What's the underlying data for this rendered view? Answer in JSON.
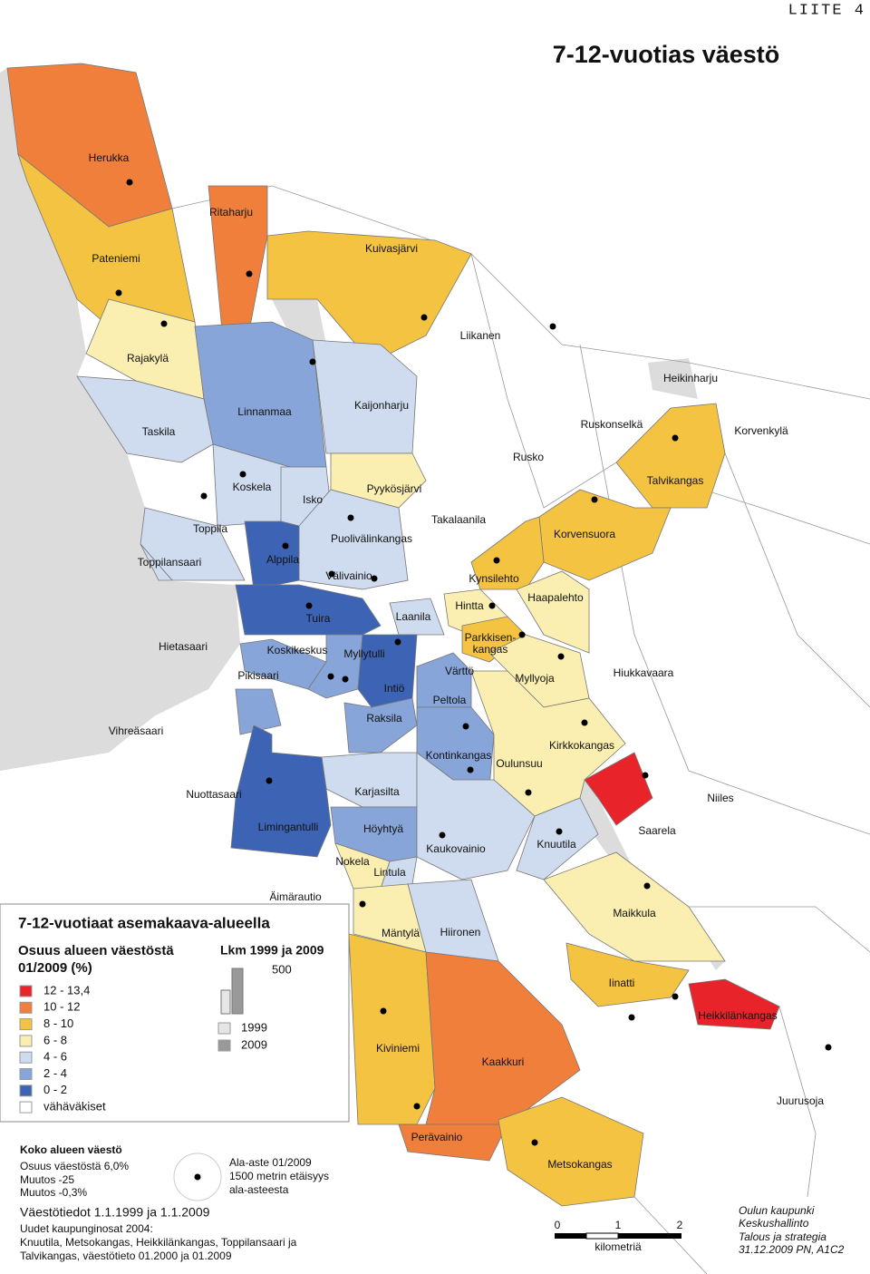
{
  "header": {
    "appendix": "LIITE 4",
    "title": "7-12-vuotias väestö"
  },
  "districts": [
    {
      "name": "Herukka",
      "color": "#f07f3c"
    },
    {
      "name": "Ritaharju",
      "color": "#f07f3c"
    },
    {
      "name": "Pateniemi",
      "color": "#f5c342"
    },
    {
      "name": "Kuivasjärvi",
      "color": "#f5c342"
    },
    {
      "name": "Liikanen",
      "color": "#ffffff"
    },
    {
      "name": "Rajakylä",
      "color": "#faefb0"
    },
    {
      "name": "Heikinharju",
      "color": "#ffffff"
    },
    {
      "name": "Linnanmaa",
      "color": "#87a5d8"
    },
    {
      "name": "Kaijonharju",
      "color": "#cfdcef"
    },
    {
      "name": "Taskila",
      "color": "#cfdcef"
    },
    {
      "name": "Ruskonselkä",
      "color": "#ffffff"
    },
    {
      "name": "Korvenkylä",
      "color": "#ffffff"
    },
    {
      "name": "Rusko",
      "color": "#ffffff"
    },
    {
      "name": "Talvikangas",
      "color": "#f5c342"
    },
    {
      "name": "Koskela",
      "color": "#cfdcef"
    },
    {
      "name": "Pyykösjärvi",
      "color": "#faefb0"
    },
    {
      "name": "Isko",
      "color": "#cfdcef"
    },
    {
      "name": "Takalaanila",
      "color": "#ffffff"
    },
    {
      "name": "Toppila",
      "color": "#cfdcef"
    },
    {
      "name": "Korvensuora",
      "color": "#f5c342"
    },
    {
      "name": "Puolivälinkangas",
      "color": "#cfdcef"
    },
    {
      "name": "Alppila",
      "color": "#3d64b4"
    },
    {
      "name": "Toppilansaari",
      "color": "#cfdcef"
    },
    {
      "name": "Välivainio",
      "color": "#cfdcef"
    },
    {
      "name": "Kynsilehto",
      "color": "#f5c342"
    },
    {
      "name": "Haapalehto",
      "color": "#faefb0"
    },
    {
      "name": "Hintta",
      "color": "#faefb0"
    },
    {
      "name": "Tuira",
      "color": "#3d64b4"
    },
    {
      "name": "Laanila",
      "color": "#cfdcef"
    },
    {
      "name": "Hietasaari",
      "color": "#ffffff"
    },
    {
      "name": [
        "Parkkisen-",
        "kangas"
      ],
      "color": "#f5c342"
    },
    {
      "name": "Koskikeskus",
      "color": "#87a5d8"
    },
    {
      "name": "Myllytulli",
      "color": "#87a5d8"
    },
    {
      "name": "Pikisaari",
      "color": "#87a5d8"
    },
    {
      "name": "Värttö",
      "color": "#87a5d8"
    },
    {
      "name": "Myllyoja",
      "color": "#faefb0"
    },
    {
      "name": "Hiukkavaara",
      "color": "#ffffff"
    },
    {
      "name": "Intiö",
      "color": "#3d64b4"
    },
    {
      "name": "Peltola",
      "color": "#87a5d8"
    },
    {
      "name": "Raksila",
      "color": "#87a5d8"
    },
    {
      "name": "Vihreäsaari",
      "color": "#ffffff"
    },
    {
      "name": "Kontinkangas",
      "color": "#87a5d8"
    },
    {
      "name": "Kirkkokangas",
      "color": "#e8232a"
    },
    {
      "name": "Oulunsuu",
      "color": "#faefb0"
    },
    {
      "name": "Nuottasaari",
      "color": "#ffffff"
    },
    {
      "name": "Karjasilta",
      "color": "#cfdcef"
    },
    {
      "name": "Niiles",
      "color": "#ffffff"
    },
    {
      "name": "Saarela",
      "color": "#ffffff"
    },
    {
      "name": "Höyhtyä",
      "color": "#87a5d8"
    },
    {
      "name": "Limingantulli",
      "color": "#3d64b4"
    },
    {
      "name": "Knuutila",
      "color": "#cfdcef"
    },
    {
      "name": "Kaukovainio",
      "color": "#cfdcef"
    },
    {
      "name": "Nokela",
      "color": "#faefb0"
    },
    {
      "name": "Lintula",
      "color": "#cfdcef"
    },
    {
      "name": "Äimärautio",
      "color": "#ffffff"
    },
    {
      "name": "Maikkula",
      "color": "#faefb0"
    },
    {
      "name": "Mäntylä",
      "color": "#faefb0"
    },
    {
      "name": "Hiironen",
      "color": "#cfdcef"
    },
    {
      "name": "Iinatti",
      "color": "#f5c342"
    },
    {
      "name": "Heikkilänkangas",
      "color": "#e8232a"
    },
    {
      "name": "Kiviniemi",
      "color": "#f5c342"
    },
    {
      "name": "Kaakkuri",
      "color": "#f07f3c"
    },
    {
      "name": "Juurusoja",
      "color": "#ffffff"
    },
    {
      "name": "Perävainio",
      "color": "#f07f3c"
    },
    {
      "name": "Metsokangas",
      "color": "#f5c342"
    }
  ],
  "legend": {
    "title": "7-12-vuotiaat asemakaava-alueella",
    "share_title": [
      "Osuus alueen väestöstä",
      "01/2009 (%)"
    ],
    "classes": [
      {
        "label": "12 - 13,4",
        "color": "#e8232a"
      },
      {
        "label": "10 - 12",
        "color": "#f07f3c"
      },
      {
        "label": "8 - 10",
        "color": "#f5c342"
      },
      {
        "label": "6 -  8",
        "color": "#faefb0"
      },
      {
        "label": "4 -  6",
        "color": "#cfdcef"
      },
      {
        "label": "2 -  4",
        "color": "#87a5d8"
      },
      {
        "label": "0 -  2",
        "color": "#3d64b4"
      },
      {
        "label": "vähäväkiset",
        "color": "#ffffff"
      }
    ],
    "count_title": "Lkm 1999 ja 2009",
    "count_scale": "500",
    "years": [
      {
        "label": "1999",
        "color": "#e6e6e6"
      },
      {
        "label": "2009",
        "color": "#999999"
      }
    ]
  },
  "info": {
    "total_title": "Koko alueen väestö",
    "total_lines": [
      "Osuus väestöstä 6,0%",
      "Muutos -25",
      "Muutos -0,3%"
    ],
    "school_lines": [
      "Ala-aste 01/2009",
      "1500 metrin etäisyys",
      "ala-asteesta"
    ],
    "source": "Väestötiedot 1.1.1999 ja 1.1.2009",
    "notes": [
      "Uudet kaupunginosat 2004:",
      "Knuutila, Metsokangas, Heikkilänkangas, Toppilansaari ja",
      "Talvikangas, väestötieto 01.2000 ja 01.2009"
    ]
  },
  "scale": {
    "ticks": [
      "0",
      "1",
      "2"
    ],
    "unit": "kilometriä"
  },
  "credit": [
    "Oulun kaupunki",
    "Keskushallinto",
    "Talous ja strategia",
    "31.12.2009 PN, A1C2"
  ]
}
